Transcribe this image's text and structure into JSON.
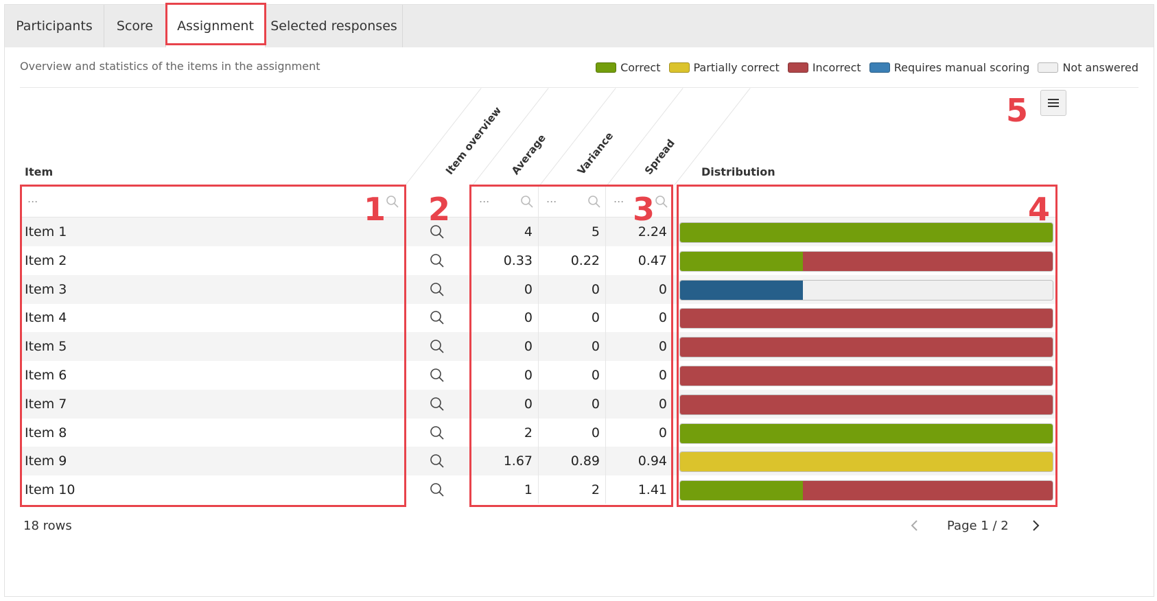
{
  "tabs": [
    {
      "label": "Participants"
    },
    {
      "label": "Score"
    },
    {
      "label": "Assignment"
    },
    {
      "label": "Selected responses"
    }
  ],
  "active_tab": "Assignment",
  "subtitle": "Overview and statistics of the items in the assignment",
  "legend": [
    {
      "label": "Correct",
      "color": "#739e0c"
    },
    {
      "label": "Partially correct",
      "color": "#dbc32c"
    },
    {
      "label": "Incorrect",
      "color": "#b04548"
    },
    {
      "label": "Requires manual scoring",
      "color": "#3b7fb5"
    },
    {
      "label": "Not answered",
      "color": "#f0f0f0"
    }
  ],
  "columns": {
    "item": "Item",
    "item_overview": "Item overview",
    "average": "Average",
    "variance": "Variance",
    "spread": "Spread",
    "distribution": "Distribution"
  },
  "filter_placeholder": "...",
  "callouts": [
    "1",
    "2",
    "3",
    "4",
    "5"
  ],
  "rows": [
    {
      "item": "Item 1",
      "average": "4",
      "variance": "5",
      "spread": "2.24",
      "dist": [
        {
          "c": "#739e0c",
          "p": 100
        }
      ]
    },
    {
      "item": "Item 2",
      "average": "0.33",
      "variance": "0.22",
      "spread": "0.47",
      "dist": [
        {
          "c": "#739e0c",
          "p": 33
        },
        {
          "c": "#b04548",
          "p": 67
        }
      ]
    },
    {
      "item": "Item 3",
      "average": "0",
      "variance": "0",
      "spread": "0",
      "dist": [
        {
          "c": "#265f8a",
          "p": 33
        },
        {
          "c": "#f0f0f0",
          "p": 67
        }
      ]
    },
    {
      "item": "Item 4",
      "average": "0",
      "variance": "0",
      "spread": "0",
      "dist": [
        {
          "c": "#b04548",
          "p": 100
        }
      ]
    },
    {
      "item": "Item 5",
      "average": "0",
      "variance": "0",
      "spread": "0",
      "dist": [
        {
          "c": "#b04548",
          "p": 100
        }
      ]
    },
    {
      "item": "Item 6",
      "average": "0",
      "variance": "0",
      "spread": "0",
      "dist": [
        {
          "c": "#b04548",
          "p": 100
        }
      ]
    },
    {
      "item": "Item 7",
      "average": "0",
      "variance": "0",
      "spread": "0",
      "dist": [
        {
          "c": "#b04548",
          "p": 100
        }
      ]
    },
    {
      "item": "Item 8",
      "average": "2",
      "variance": "0",
      "spread": "0",
      "dist": [
        {
          "c": "#739e0c",
          "p": 100
        }
      ]
    },
    {
      "item": "Item 9",
      "average": "1.67",
      "variance": "0.89",
      "spread": "0.94",
      "dist": [
        {
          "c": "#dbc32c",
          "p": 100
        }
      ]
    },
    {
      "item": "Item 10",
      "average": "1",
      "variance": "2",
      "spread": "1.41",
      "dist": [
        {
          "c": "#739e0c",
          "p": 33
        },
        {
          "c": "#b04548",
          "p": 67
        }
      ]
    }
  ],
  "footer": {
    "rows_count": "18 rows",
    "page": "Page 1 / 2"
  }
}
